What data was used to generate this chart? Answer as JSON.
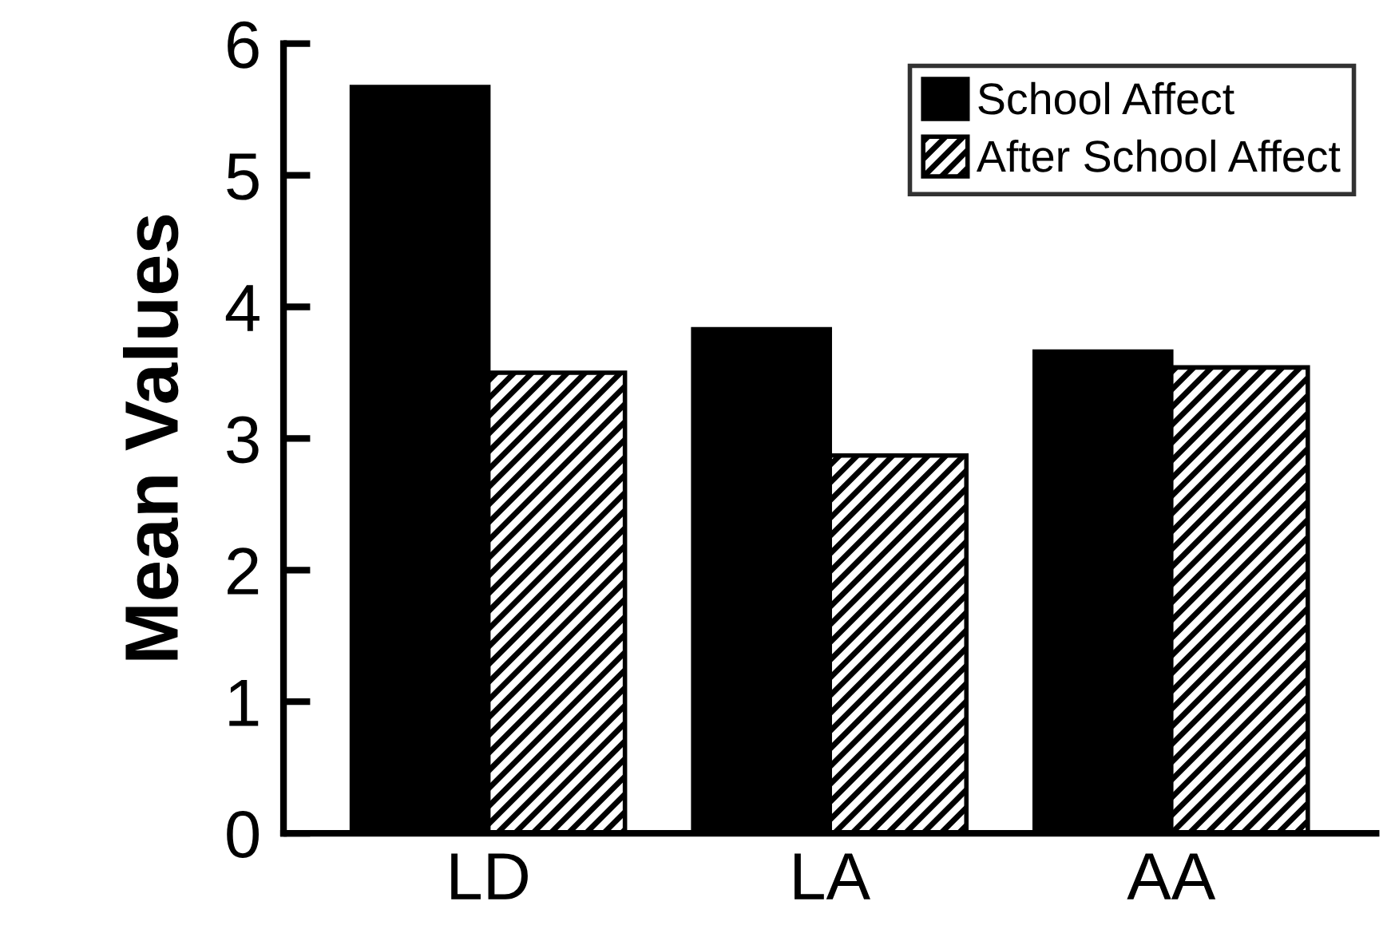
{
  "chart_data": {
    "type": "bar",
    "ylabel": "Mean Values",
    "categories": [
      "LD",
      "LA",
      "AA"
    ],
    "series": [
      {
        "name": "School Affect",
        "color": "#000000",
        "values": [
          5.67,
          3.83,
          3.66
        ]
      },
      {
        "name": "After School Affect",
        "color": "#000000",
        "values": [
          3.5,
          2.87,
          3.54
        ]
      }
    ],
    "ylim": [
      0,
      6
    ],
    "yticks": [
      0,
      1,
      2,
      3,
      4,
      5,
      6
    ],
    "grid": false,
    "legend": "top right"
  }
}
